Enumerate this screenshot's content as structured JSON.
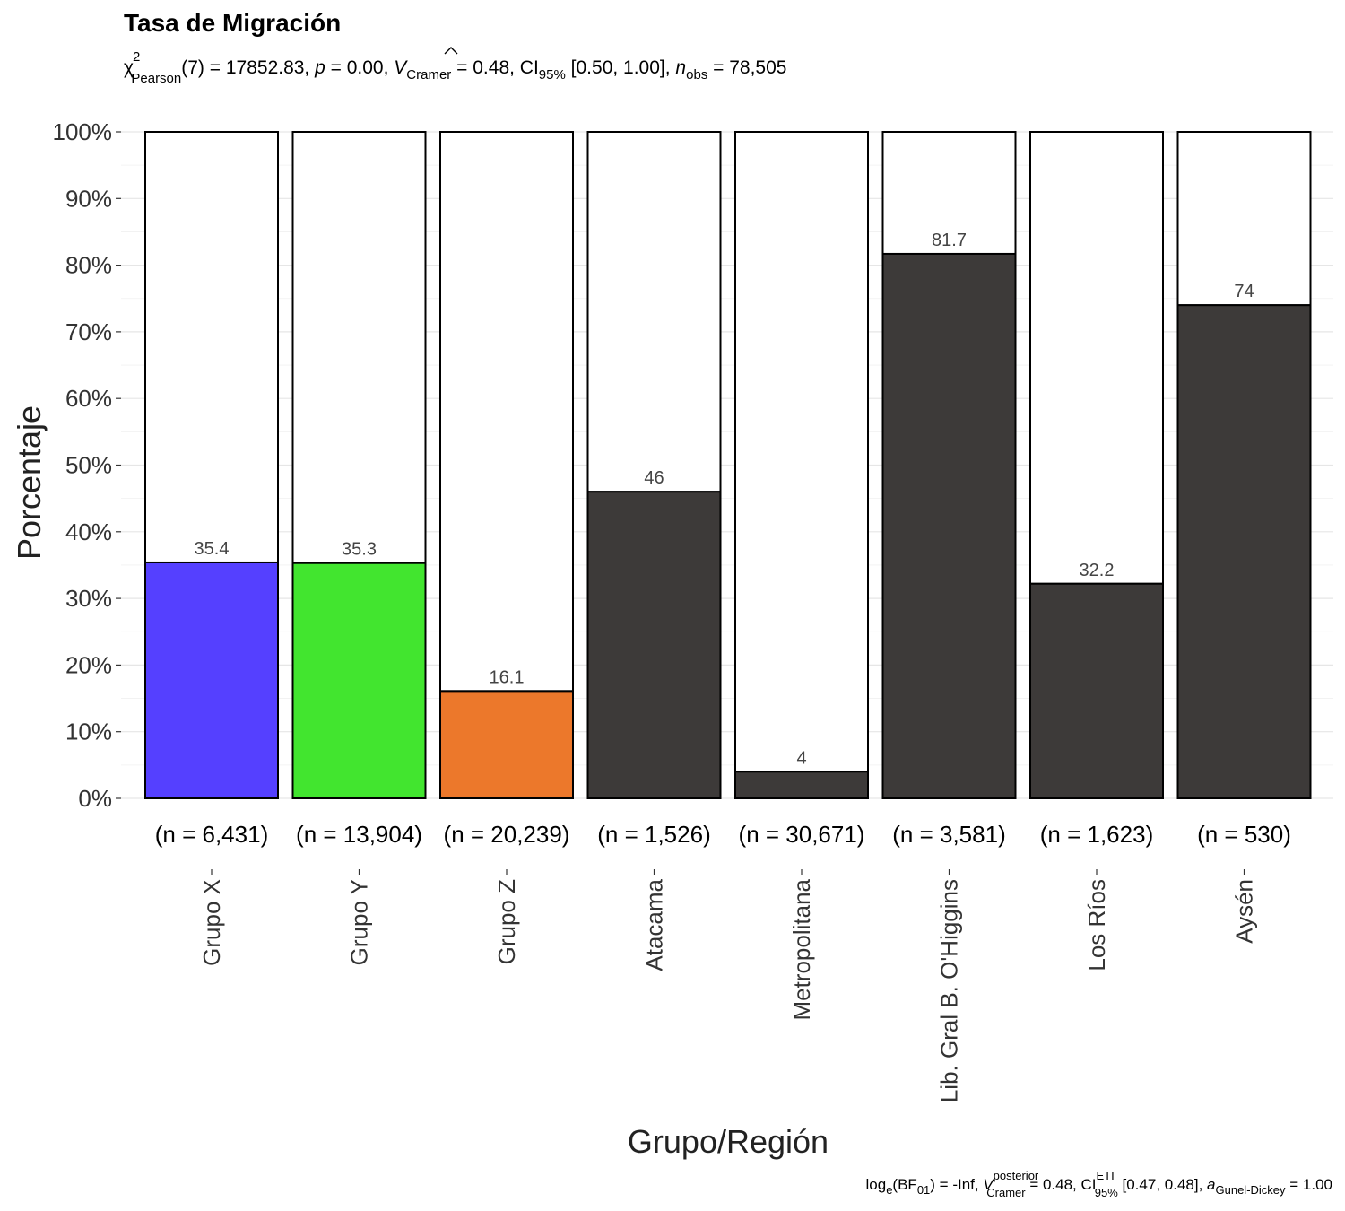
{
  "chart_data": {
    "type": "bar",
    "stacked_percent": true,
    "title": "Tasa de Migración",
    "subtitle": "χ²Pearson(7) = 17852.83, p = 0.00, V̂Cramer = 0.48, CI95% [0.50, 1.00], nobs = 78,505",
    "subtitle_parts": {
      "chi": "χ",
      "chi_sup": "2",
      "pearson_sub": "Pearson",
      "stat": "(7) = 17852.83, ",
      "p": "p",
      "p_val": " = 0.00, ",
      "v": "V",
      "cramer_sub": "Cramer",
      "v_val": " = 0.48, CI",
      "ci_sub": "95%",
      "ci_val": " [0.50, 1.00], ",
      "n": "n",
      "obs_sub": "obs",
      "n_val": " = 78,505"
    },
    "caption_parts": {
      "log": "log",
      "e_sub": "e",
      "bf": "(BF",
      "bf_sub": "01",
      "bf_val": ") = -Inf, ",
      "v": "V",
      "posterior_sup": "posterior",
      "cramer_sub": "Cramer",
      "v_val": " = 0.48, CI",
      "eti_sup": "ETI",
      "ci_sub": "95%",
      "ci_val": " [0.47, 0.48], ",
      "a": "a",
      "gd_sub": "Gunel-Dickey",
      "a_val": " = 1.00"
    },
    "xlabel": "Grupo/Región",
    "ylabel": "Porcentaje",
    "ylim": [
      0,
      100
    ],
    "yticks": [
      "0%",
      "10%",
      "20%",
      "30%",
      "40%",
      "50%",
      "60%",
      "70%",
      "80%",
      "90%",
      "100%"
    ],
    "grid": true,
    "categories": [
      "Grupo X",
      "Grupo Y",
      "Grupo Z",
      "Atacama",
      "Metropolitana",
      "Lib. Gral B. O'Higgins",
      "Los Ríos",
      "Aysén"
    ],
    "counts": [
      "(n = 6,431)",
      "(n = 13,904)",
      "(n = 20,239)",
      "(n = 1,526)",
      "(n = 30,671)",
      "(n = 3,581)",
      "(n = 1,623)",
      "(n = 530)"
    ],
    "values": [
      35.4,
      35.3,
      16.1,
      46,
      4,
      81.7,
      32.2,
      74
    ],
    "value_labels": [
      "35.4",
      "35.3",
      "16.1",
      "46",
      "4",
      "81.7",
      "32.2",
      "74"
    ],
    "colors": [
      "#5540FF",
      "#42E52F",
      "#EC782B",
      "#3D3A39",
      "#3D3A39",
      "#3D3A39",
      "#3D3A39",
      "#3D3A39"
    ],
    "remainder_color": "#FFFFFF"
  }
}
